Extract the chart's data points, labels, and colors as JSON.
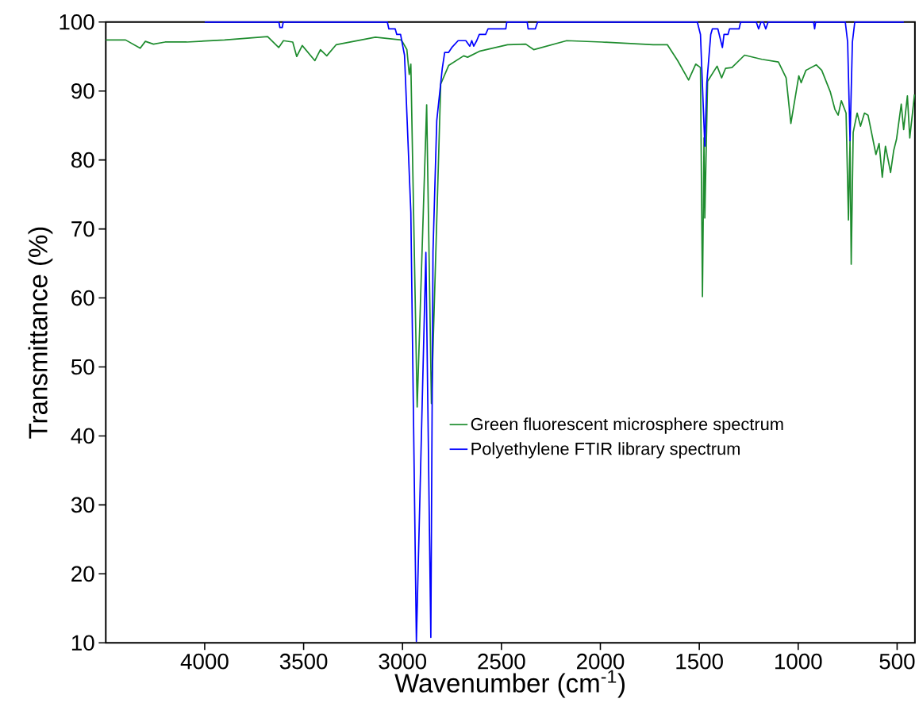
{
  "chart_data": {
    "type": "line",
    "xlabel": "Wavenumber (cm$^{-1}$)",
    "ylabel": "Transmittance (%)",
    "xlim": [
      4500,
      410
    ],
    "xticks": [
      4000,
      3500,
      3000,
      2500,
      2000,
      1500,
      1000,
      500
    ],
    "ylim": [
      10,
      100
    ],
    "yticks": [
      10,
      20,
      30,
      40,
      50,
      60,
      70,
      80,
      90,
      100
    ],
    "legend": "right",
    "marker": "none",
    "line_style": "solid",
    "series": [
      {
        "name": "Green fluorescent microsphere spectrum",
        "color": "#1e8c2e",
        "x": [
          4500,
          4400,
          4326,
          4300,
          4259,
          4200,
          4091,
          3900,
          3682,
          3626,
          3602,
          3555,
          3535,
          3507,
          3443,
          3415,
          3383,
          3336,
          3137,
          3006,
          2978,
          2966,
          2958,
          2926,
          2878,
          2854,
          2807,
          2767,
          2691,
          2671,
          2608,
          2469,
          2377,
          2337,
          2170,
          1991,
          1733,
          1661,
          1609,
          1554,
          1518,
          1494,
          1484,
          1476,
          1472,
          1458,
          1410,
          1387,
          1367,
          1335,
          1271,
          1184,
          1100,
          1061,
          1037,
          997,
          985,
          961,
          909,
          881,
          838,
          814,
          798,
          782,
          758,
          746,
          738,
          732,
          722,
          702,
          685,
          665,
          647,
          607,
          591,
          575,
          559,
          533,
          517,
          503,
          479,
          467,
          448,
          436,
          412
        ],
        "values": [
          97.4,
          97.4,
          96.2,
          97.2,
          96.8,
          97.1,
          97.1,
          97.4,
          97.9,
          96.3,
          97.3,
          97.1,
          95.0,
          96.6,
          94.4,
          96.0,
          95.1,
          96.7,
          97.8,
          97.4,
          96.0,
          92.4,
          93.9,
          44.2,
          88.0,
          44.7,
          91.0,
          93.7,
          95.1,
          94.9,
          95.8,
          96.7,
          96.8,
          96.0,
          97.3,
          97.1,
          96.7,
          96.7,
          94.4,
          91.6,
          93.9,
          93.4,
          60.2,
          83.2,
          71.6,
          91.4,
          93.6,
          91.9,
          93.3,
          93.4,
          95.2,
          94.6,
          94.2,
          91.9,
          85.3,
          92.2,
          91.2,
          93.0,
          93.8,
          93.0,
          89.9,
          87.3,
          86.5,
          88.6,
          86.8,
          71.3,
          82.9,
          64.9,
          84.0,
          86.8,
          84.9,
          86.8,
          86.5,
          80.8,
          82.4,
          77.5,
          82.0,
          78.2,
          81.4,
          83.0,
          88.1,
          84.4,
          89.3,
          83.2,
          89.5
        ]
      },
      {
        "name": "Polyethylene FTIR library spectrum",
        "color": "#0000ff",
        "x": [
          4000,
          3625,
          3620,
          3608,
          3603,
          3077,
          3069,
          3037,
          3029,
          3010,
          2990,
          2958,
          2930,
          2882,
          2857,
          2846,
          2827,
          2799,
          2787,
          2767,
          2751,
          2719,
          2680,
          2660,
          2650,
          2640,
          2625,
          2612,
          2580,
          2568,
          2478,
          2473,
          2370,
          2365,
          2329,
          2317,
          1510,
          1494,
          1472,
          1462,
          1442,
          1434,
          1406,
          1383,
          1375,
          1355,
          1347,
          1299,
          1291,
          1212,
          1200,
          1188,
          1176,
          1164,
          1152,
          922,
          917,
          912,
          762,
          750,
          738,
          726,
          714,
          466
        ],
        "values": [
          100,
          100,
          99.2,
          99.2,
          100,
          100,
          99.0,
          99.0,
          98.2,
          98.2,
          95.2,
          72.4,
          10.2,
          66.6,
          10.8,
          66.7,
          85.7,
          93.3,
          95.6,
          95.6,
          96.3,
          97.3,
          97.3,
          96.5,
          97.3,
          96.5,
          97.3,
          98.2,
          98.2,
          99.0,
          99.0,
          100,
          100,
          99.0,
          99.0,
          100,
          100,
          98.2,
          82.0,
          91.1,
          98.2,
          99.0,
          99.0,
          96.3,
          98.2,
          98.2,
          99.0,
          99.0,
          100,
          100,
          99.0,
          100,
          100,
          99.0,
          100,
          100,
          99.0,
          100,
          100,
          97.1,
          82.8,
          97.1,
          100,
          100
        ]
      }
    ]
  }
}
